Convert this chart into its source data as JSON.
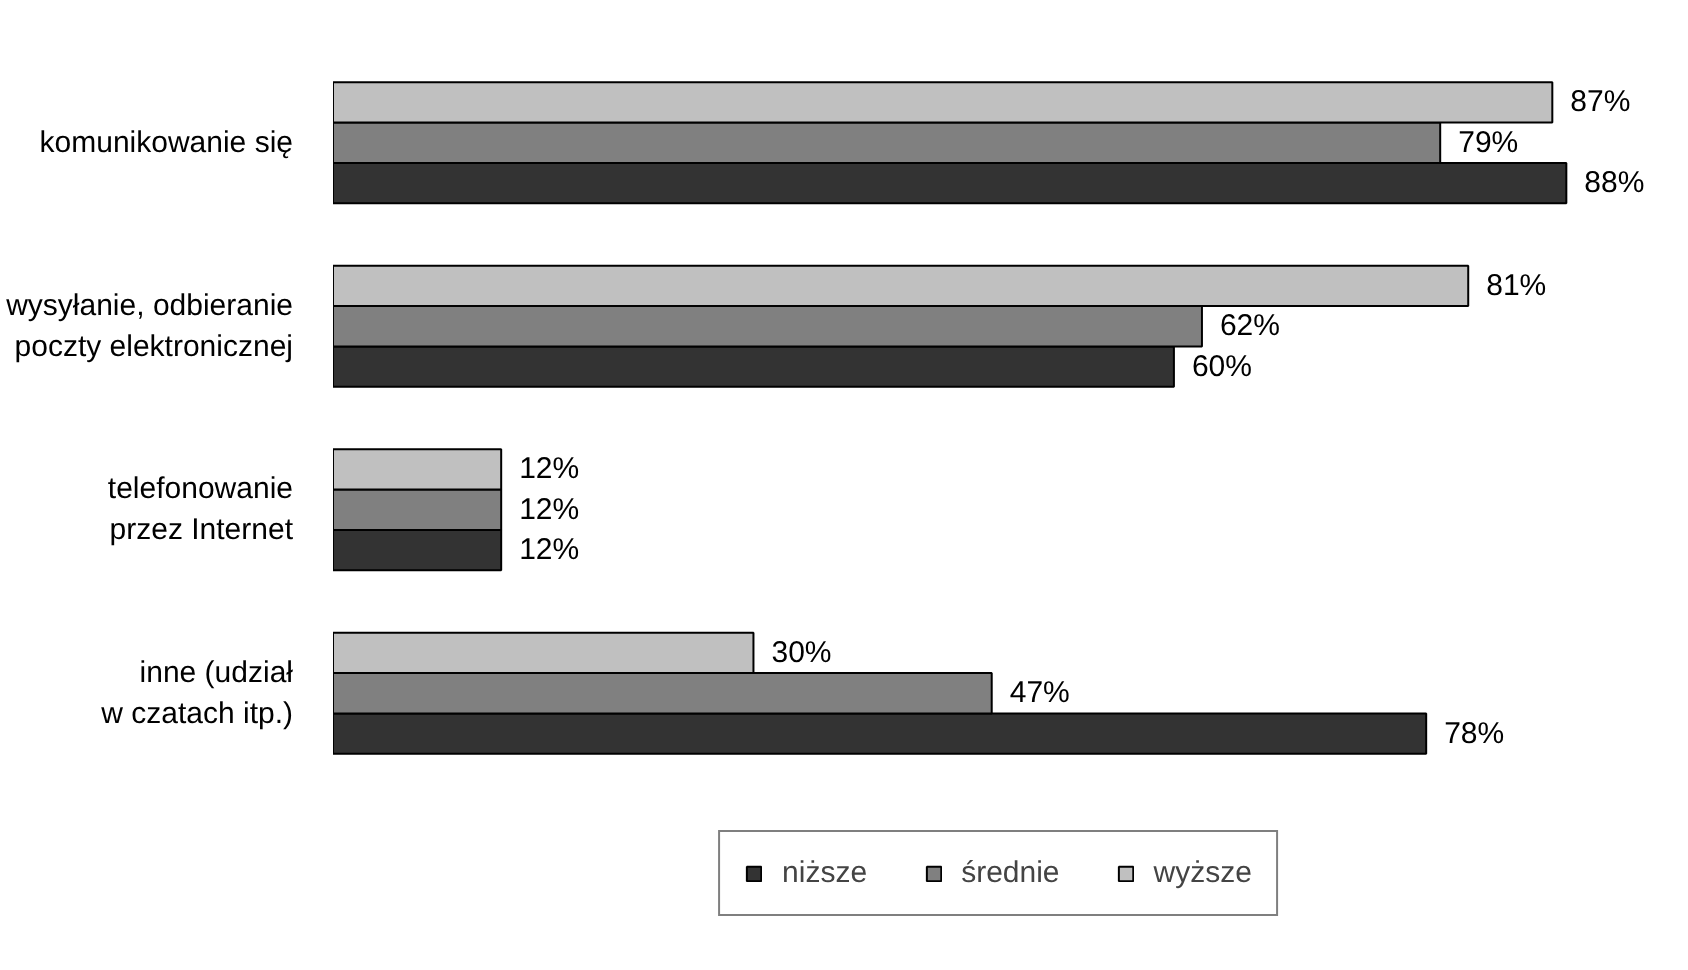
{
  "chart_data": {
    "type": "bar",
    "orientation": "horizontal",
    "categories": [
      "komunikowanie się",
      "wysyłanie, odbieranie\npoczty elektronicznej",
      "telefonowanie\nprzez Internet",
      "inne (udział\nw czatach itp.)"
    ],
    "series": [
      {
        "name": "niższe",
        "color": "#333333",
        "values": [
          88,
          60,
          12,
          78
        ],
        "value_labels": [
          "88%",
          "60%",
          "12%",
          "78%"
        ]
      },
      {
        "name": "średnie",
        "color": "#808080",
        "values": [
          79,
          62,
          12,
          47
        ],
        "value_labels": [
          "79%",
          "62%",
          "12%",
          "47%"
        ]
      },
      {
        "name": "wyższe",
        "color": "#c0c0c0",
        "values": [
          87,
          81,
          12,
          30
        ],
        "value_labels": [
          "87%",
          "81%",
          "12%",
          "30%"
        ]
      }
    ],
    "legend": "bottom",
    "tick_labels": "y"
  }
}
